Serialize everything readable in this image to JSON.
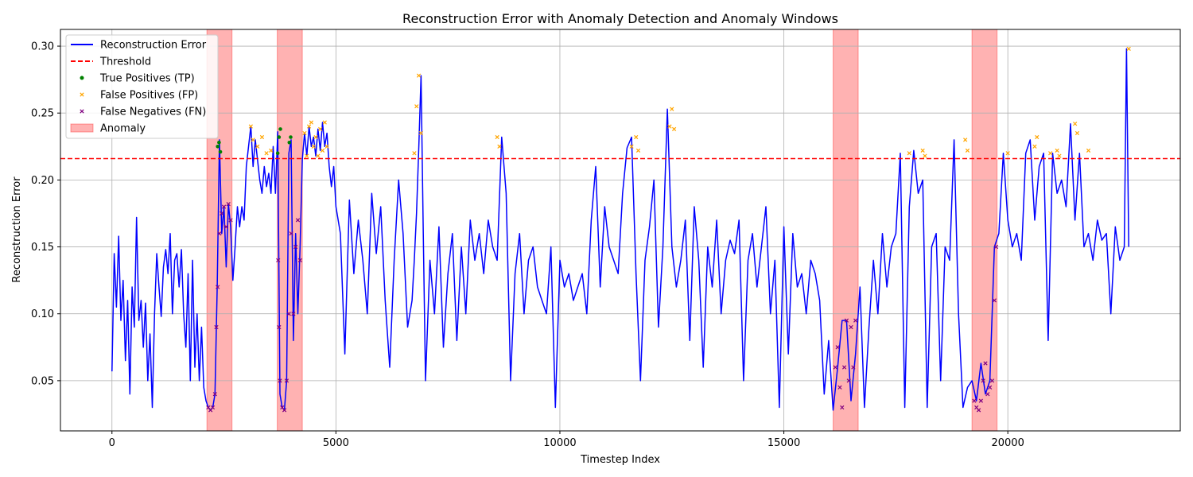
{
  "chart_data": {
    "type": "line",
    "title": "Reconstruction Error with Anomaly Detection and Anomaly Windows",
    "xlabel": "Timestep Index",
    "ylabel": "Reconstruction Error",
    "xlim": [
      -1150,
      23850
    ],
    "ylim": [
      0.0125,
      0.3125
    ],
    "xticks": [
      0,
      5000,
      10000,
      15000,
      20000
    ],
    "yticks": [
      0.05,
      0.1,
      0.15,
      0.2,
      0.25,
      0.3
    ],
    "ytick_labels": [
      "0.05",
      "0.10",
      "0.15",
      "0.20",
      "0.25",
      "0.30"
    ],
    "grid": true,
    "legend_position": "top-left",
    "threshold": 0.216,
    "anomaly_windows": [
      [
        2120,
        2680
      ],
      [
        3690,
        4250
      ],
      [
        16100,
        16660
      ],
      [
        19200,
        19760
      ]
    ],
    "legend": [
      {
        "label": "Reconstruction Error",
        "kind": "line",
        "color": "#0000ff"
      },
      {
        "label": "Threshold",
        "kind": "dashed",
        "color": "#ff0000"
      },
      {
        "label": "True Positives (TP)",
        "kind": "dot",
        "color": "#008000"
      },
      {
        "label": "False Positives (FP)",
        "kind": "cross",
        "color": "#ffa500"
      },
      {
        "label": "False Negatives (FN)",
        "kind": "cross",
        "color": "#800080"
      },
      {
        "label": "Anomaly",
        "kind": "patch",
        "color": "#ff0000"
      }
    ],
    "series": [
      {
        "name": "Reconstruction Error",
        "color": "#0000ff",
        "x": [
          0,
          50,
          100,
          150,
          200,
          250,
          300,
          350,
          400,
          450,
          500,
          550,
          600,
          650,
          700,
          750,
          800,
          850,
          900,
          950,
          1000,
          1050,
          1100,
          1150,
          1200,
          1250,
          1300,
          1350,
          1400,
          1450,
          1500,
          1550,
          1600,
          1650,
          1700,
          1750,
          1800,
          1850,
          1900,
          1950,
          2000,
          2050,
          2100,
          2150,
          2200,
          2250,
          2300,
          2350,
          2400,
          2450,
          2500,
          2550,
          2600,
          2650,
          2700,
          2750,
          2800,
          2850,
          2900,
          2950,
          3000,
          3050,
          3100,
          3150,
          3200,
          3250,
          3300,
          3350,
          3400,
          3450,
          3500,
          3550,
          3600,
          3650,
          3700,
          3750,
          3800,
          3850,
          3900,
          3950,
          4000,
          4050,
          4100,
          4150,
          4200,
          4250,
          4300,
          4350,
          4400,
          4450,
          4500,
          4550,
          4600,
          4650,
          4700,
          4750,
          4800,
          4850,
          4900,
          4950,
          5000,
          5100,
          5200,
          5300,
          5400,
          5500,
          5600,
          5700,
          5800,
          5900,
          6000,
          6100,
          6200,
          6300,
          6400,
          6500,
          6600,
          6700,
          6750,
          6800,
          6850,
          6900,
          6950,
          7000,
          7100,
          7200,
          7300,
          7400,
          7500,
          7600,
          7700,
          7800,
          7900,
          8000,
          8100,
          8200,
          8300,
          8400,
          8500,
          8600,
          8700,
          8800,
          8900,
          9000,
          9100,
          9200,
          9300,
          9400,
          9500,
          9600,
          9700,
          9800,
          9900,
          10000,
          10100,
          10200,
          10300,
          10400,
          10500,
          10600,
          10700,
          10800,
          10900,
          11000,
          11100,
          11200,
          11300,
          11400,
          11500,
          11600,
          11700,
          11800,
          11900,
          12000,
          12100,
          12200,
          12300,
          12400,
          12500,
          12600,
          12700,
          12800,
          12900,
          13000,
          13100,
          13200,
          13300,
          13400,
          13500,
          13600,
          13700,
          13800,
          13900,
          14000,
          14100,
          14200,
          14300,
          14400,
          14500,
          14600,
          14700,
          14800,
          14900,
          15000,
          15100,
          15200,
          15300,
          15400,
          15500,
          15600,
          15700,
          15800,
          15900,
          16000,
          16100,
          16200,
          16300,
          16400,
          16500,
          16600,
          16700,
          16800,
          16900,
          17000,
          17100,
          17200,
          17300,
          17400,
          17500,
          17600,
          17700,
          17800,
          17900,
          18000,
          18100,
          18200,
          18300,
          18400,
          18500,
          18600,
          18700,
          18800,
          18900,
          19000,
          19100,
          19200,
          19300,
          19400,
          19500,
          19600,
          19700,
          19800,
          19900,
          20000,
          20100,
          20200,
          20300,
          20400,
          20500,
          20600,
          20700,
          20800,
          20900,
          21000,
          21100,
          21200,
          21300,
          21400,
          21500,
          21600,
          21700,
          21800,
          21900,
          22000,
          22100,
          22200,
          22300,
          22400,
          22500,
          22600,
          22650,
          22700
        ],
        "y": [
          0.057,
          0.145,
          0.105,
          0.158,
          0.095,
          0.125,
          0.065,
          0.11,
          0.04,
          0.12,
          0.09,
          0.172,
          0.095,
          0.11,
          0.075,
          0.108,
          0.05,
          0.085,
          0.03,
          0.1,
          0.145,
          0.12,
          0.098,
          0.135,
          0.148,
          0.13,
          0.16,
          0.1,
          0.14,
          0.145,
          0.12,
          0.148,
          0.1,
          0.075,
          0.13,
          0.05,
          0.14,
          0.06,
          0.1,
          0.05,
          0.09,
          0.045,
          0.035,
          0.03,
          0.028,
          0.03,
          0.04,
          0.12,
          0.23,
          0.16,
          0.18,
          0.135,
          0.182,
          0.165,
          0.125,
          0.15,
          0.18,
          0.165,
          0.18,
          0.17,
          0.21,
          0.225,
          0.24,
          0.21,
          0.23,
          0.215,
          0.2,
          0.19,
          0.21,
          0.195,
          0.205,
          0.19,
          0.225,
          0.19,
          0.236,
          0.04,
          0.03,
          0.028,
          0.05,
          0.22,
          0.23,
          0.08,
          0.16,
          0.1,
          0.15,
          0.215,
          0.235,
          0.218,
          0.24,
          0.225,
          0.232,
          0.218,
          0.238,
          0.222,
          0.243,
          0.225,
          0.235,
          0.21,
          0.195,
          0.21,
          0.18,
          0.16,
          0.07,
          0.185,
          0.13,
          0.17,
          0.14,
          0.1,
          0.19,
          0.145,
          0.18,
          0.11,
          0.06,
          0.14,
          0.2,
          0.16,
          0.09,
          0.11,
          0.14,
          0.175,
          0.225,
          0.278,
          0.16,
          0.05,
          0.14,
          0.1,
          0.165,
          0.075,
          0.13,
          0.16,
          0.08,
          0.15,
          0.1,
          0.17,
          0.14,
          0.16,
          0.13,
          0.17,
          0.15,
          0.14,
          0.232,
          0.19,
          0.05,
          0.13,
          0.16,
          0.1,
          0.14,
          0.15,
          0.12,
          0.11,
          0.1,
          0.15,
          0.03,
          0.14,
          0.12,
          0.13,
          0.11,
          0.12,
          0.13,
          0.1,
          0.17,
          0.21,
          0.12,
          0.18,
          0.15,
          0.14,
          0.13,
          0.19,
          0.224,
          0.232,
          0.13,
          0.05,
          0.14,
          0.165,
          0.2,
          0.09,
          0.15,
          0.253,
          0.15,
          0.12,
          0.14,
          0.17,
          0.08,
          0.18,
          0.14,
          0.06,
          0.15,
          0.12,
          0.17,
          0.1,
          0.14,
          0.155,
          0.145,
          0.17,
          0.05,
          0.14,
          0.16,
          0.12,
          0.15,
          0.18,
          0.1,
          0.14,
          0.03,
          0.165,
          0.07,
          0.16,
          0.12,
          0.13,
          0.1,
          0.14,
          0.13,
          0.11,
          0.04,
          0.08,
          0.028,
          0.06,
          0.095,
          0.095,
          0.035,
          0.07,
          0.12,
          0.03,
          0.09,
          0.14,
          0.1,
          0.16,
          0.12,
          0.15,
          0.16,
          0.22,
          0.03,
          0.18,
          0.222,
          0.19,
          0.2,
          0.03,
          0.15,
          0.16,
          0.05,
          0.15,
          0.14,
          0.23,
          0.1,
          0.03,
          0.045,
          0.05,
          0.035,
          0.063,
          0.04,
          0.05,
          0.15,
          0.16,
          0.22,
          0.17,
          0.15,
          0.16,
          0.14,
          0.22,
          0.23,
          0.17,
          0.21,
          0.22,
          0.08,
          0.22,
          0.19,
          0.2,
          0.18,
          0.242,
          0.17,
          0.22,
          0.15,
          0.16,
          0.14,
          0.17,
          0.155,
          0.16,
          0.1,
          0.165,
          0.14,
          0.15,
          0.298,
          0.15
        ]
      }
    ],
    "markers": {
      "tp": {
        "name": "True Positives (TP)",
        "color": "#008000",
        "x": [
          2360,
          2390,
          2420,
          3700,
          3730,
          3760,
          3960,
          3990
        ],
        "y": [
          0.225,
          0.228,
          0.221,
          0.22,
          0.232,
          0.238,
          0.228,
          0.232
        ]
      },
      "fp": {
        "name": "False Positives (FP)",
        "color": "#ffa500",
        "x": [
          3100,
          3150,
          3250,
          3350,
          3450,
          3550,
          4300,
          4350,
          4400,
          4450,
          4500,
          4550,
          4600,
          4650,
          4700,
          4750,
          4800,
          6750,
          6800,
          6850,
          6900,
          8600,
          8650,
          11600,
          11700,
          11750,
          12450,
          12500,
          12550,
          17800,
          18100,
          18150,
          19050,
          19100,
          20000,
          20600,
          20650,
          20950,
          21100,
          21150,
          21500,
          21550,
          21800,
          22700
        ],
        "y": [
          0.24,
          0.23,
          0.225,
          0.232,
          0.22,
          0.222,
          0.235,
          0.218,
          0.24,
          0.243,
          0.225,
          0.232,
          0.218,
          0.238,
          0.222,
          0.243,
          0.225,
          0.22,
          0.255,
          0.278,
          0.235,
          0.232,
          0.225,
          0.225,
          0.232,
          0.222,
          0.24,
          0.253,
          0.238,
          0.22,
          0.222,
          0.218,
          0.23,
          0.222,
          0.22,
          0.225,
          0.232,
          0.22,
          0.222,
          0.218,
          0.242,
          0.235,
          0.222,
          0.298
        ]
      },
      "fn": {
        "name": "False Negatives (FN)",
        "color": "#800080",
        "x": [
          2150,
          2200,
          2250,
          2300,
          2330,
          2360,
          2400,
          2450,
          2500,
          2550,
          2600,
          2650,
          3710,
          3730,
          3750,
          3800,
          3850,
          3900,
          3950,
          4000,
          4050,
          4100,
          4150,
          4200,
          16150,
          16200,
          16250,
          16300,
          16350,
          16400,
          16450,
          16500,
          16550,
          16600,
          19250,
          19300,
          19350,
          19400,
          19450,
          19500,
          19550,
          19600,
          19650,
          19700,
          19740
        ],
        "y": [
          0.03,
          0.028,
          0.03,
          0.04,
          0.09,
          0.12,
          0.16,
          0.175,
          0.18,
          0.165,
          0.182,
          0.17,
          0.14,
          0.09,
          0.05,
          0.03,
          0.028,
          0.05,
          0.1,
          0.16,
          0.1,
          0.15,
          0.17,
          0.14,
          0.06,
          0.075,
          0.045,
          0.03,
          0.06,
          0.095,
          0.05,
          0.09,
          0.06,
          0.095,
          0.035,
          0.03,
          0.028,
          0.035,
          0.05,
          0.063,
          0.04,
          0.045,
          0.05,
          0.11,
          0.15
        ]
      }
    }
  }
}
